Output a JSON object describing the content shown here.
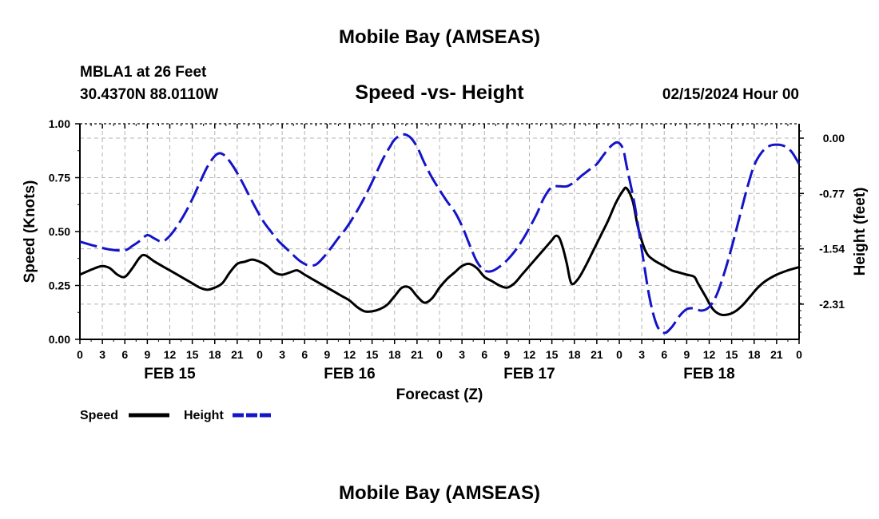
{
  "page": {
    "title_top": "Mobile Bay (AMSEAS)",
    "title_bottom": "Mobile Bay (AMSEAS)",
    "station": "MBLA1 at 26 Feet",
    "coords": "30.4370N  88.0110W",
    "datetime": "02/15/2024 Hour 00"
  },
  "colors": {
    "speed": "#000000",
    "height": "#1414c8",
    "grid": "#b4b4b4"
  },
  "chart_data": {
    "type": "line",
    "title": "Speed -vs- Height",
    "xlabel": "Forecast (Z)",
    "ylabel": "Speed (Knots)",
    "y2label": "Height (feet)",
    "x_unit": "hours from 02/15/2024 00Z",
    "xlim": [
      0,
      96
    ],
    "ylim": [
      0,
      1.0
    ],
    "y2lim": [
      -2.8,
      0.2
    ],
    "x_ticks": [
      0,
      3,
      6,
      9,
      12,
      15,
      18,
      21,
      24,
      27,
      30,
      33,
      36,
      39,
      42,
      45,
      48,
      51,
      54,
      57,
      60,
      63,
      66,
      69,
      72,
      75,
      78,
      81,
      84,
      87,
      90,
      93,
      96
    ],
    "x_tick_labels": [
      "0",
      "3",
      "6",
      "9",
      "12",
      "15",
      "18",
      "21",
      "0",
      "3",
      "6",
      "9",
      "12",
      "15",
      "18",
      "21",
      "0",
      "3",
      "6",
      "9",
      "12",
      "15",
      "18",
      "21",
      "0",
      "3",
      "6",
      "9",
      "12",
      "15",
      "18",
      "21",
      "0"
    ],
    "day_labels": [
      {
        "x": 12,
        "label": "FEB 15"
      },
      {
        "x": 36,
        "label": "FEB 16"
      },
      {
        "x": 60,
        "label": "FEB 17"
      },
      {
        "x": 84,
        "label": "FEB 18"
      }
    ],
    "y_ticks": [
      0.0,
      0.25,
      0.5,
      0.75,
      1.0
    ],
    "y_tick_labels": [
      "0.00",
      "0.25",
      "0.50",
      "0.75",
      "1.00"
    ],
    "y2_ticks": [
      0.0,
      -0.77,
      -1.54,
      -2.31
    ],
    "y2_tick_labels": [
      "0.00",
      "-0.77",
      "-1.54",
      "-2.31"
    ],
    "series": [
      {
        "name": "Speed",
        "axis": "left",
        "style": "solid",
        "points": [
          [
            0,
            0.3
          ],
          [
            2,
            0.33
          ],
          [
            3,
            0.34
          ],
          [
            4,
            0.33
          ],
          [
            5,
            0.3
          ],
          [
            6,
            0.29
          ],
          [
            7,
            0.33
          ],
          [
            8,
            0.38
          ],
          [
            8.7,
            0.39
          ],
          [
            10,
            0.36
          ],
          [
            12,
            0.32
          ],
          [
            14,
            0.28
          ],
          [
            15,
            0.26
          ],
          [
            16,
            0.24
          ],
          [
            17,
            0.23
          ],
          [
            18,
            0.24
          ],
          [
            19,
            0.26
          ],
          [
            20,
            0.31
          ],
          [
            21,
            0.35
          ],
          [
            22,
            0.36
          ],
          [
            23,
            0.37
          ],
          [
            24,
            0.36
          ],
          [
            25,
            0.34
          ],
          [
            26,
            0.31
          ],
          [
            27,
            0.3
          ],
          [
            28,
            0.31
          ],
          [
            29,
            0.32
          ],
          [
            30,
            0.3
          ],
          [
            31,
            0.28
          ],
          [
            32,
            0.26
          ],
          [
            33,
            0.24
          ],
          [
            34,
            0.22
          ],
          [
            35,
            0.2
          ],
          [
            36,
            0.18
          ],
          [
            37,
            0.15
          ],
          [
            38,
            0.13
          ],
          [
            39,
            0.13
          ],
          [
            40,
            0.14
          ],
          [
            41,
            0.16
          ],
          [
            42,
            0.2
          ],
          [
            43,
            0.24
          ],
          [
            44,
            0.24
          ],
          [
            45,
            0.2
          ],
          [
            46,
            0.17
          ],
          [
            47,
            0.19
          ],
          [
            48,
            0.24
          ],
          [
            49,
            0.28
          ],
          [
            50,
            0.31
          ],
          [
            51,
            0.34
          ],
          [
            52,
            0.35
          ],
          [
            53,
            0.33
          ],
          [
            54,
            0.29
          ],
          [
            55,
            0.27
          ],
          [
            56,
            0.25
          ],
          [
            57,
            0.24
          ],
          [
            58,
            0.26
          ],
          [
            59,
            0.3
          ],
          [
            60,
            0.34
          ],
          [
            61,
            0.38
          ],
          [
            62,
            0.42
          ],
          [
            63,
            0.46
          ],
          [
            63.5,
            0.48
          ],
          [
            64,
            0.47
          ],
          [
            64.5,
            0.42
          ],
          [
            65,
            0.35
          ],
          [
            65.6,
            0.26
          ],
          [
            66.5,
            0.28
          ],
          [
            67.5,
            0.34
          ],
          [
            68.5,
            0.41
          ],
          [
            69.5,
            0.48
          ],
          [
            70.5,
            0.55
          ],
          [
            71.5,
            0.63
          ],
          [
            72.5,
            0.69
          ],
          [
            73,
            0.7
          ],
          [
            73.8,
            0.64
          ],
          [
            74.5,
            0.52
          ],
          [
            75.5,
            0.41
          ],
          [
            76.5,
            0.37
          ],
          [
            78,
            0.34
          ],
          [
            79,
            0.32
          ],
          [
            80,
            0.31
          ],
          [
            81,
            0.3
          ],
          [
            82,
            0.29
          ],
          [
            82.5,
            0.26
          ],
          [
            83.5,
            0.2
          ],
          [
            84.5,
            0.14
          ],
          [
            85.5,
            0.115
          ],
          [
            86.5,
            0.115
          ],
          [
            87.5,
            0.13
          ],
          [
            88.5,
            0.16
          ],
          [
            89.5,
            0.2
          ],
          [
            90.5,
            0.24
          ],
          [
            91.5,
            0.27
          ],
          [
            93,
            0.3
          ],
          [
            94.5,
            0.32
          ],
          [
            96,
            0.335
          ]
        ]
      },
      {
        "name": "Height",
        "axis": "right",
        "style": "dashed",
        "points": [
          [
            0,
            -1.44
          ],
          [
            2,
            -1.5
          ],
          [
            4,
            -1.55
          ],
          [
            6,
            -1.56
          ],
          [
            7,
            -1.5
          ],
          [
            8,
            -1.43
          ],
          [
            9,
            -1.35
          ],
          [
            10,
            -1.4
          ],
          [
            11,
            -1.44
          ],
          [
            12,
            -1.36
          ],
          [
            13,
            -1.22
          ],
          [
            14,
            -1.05
          ],
          [
            15,
            -0.85
          ],
          [
            16,
            -0.62
          ],
          [
            17,
            -0.4
          ],
          [
            18,
            -0.25
          ],
          [
            18.7,
            -0.21
          ],
          [
            19.5,
            -0.26
          ],
          [
            20.5,
            -0.4
          ],
          [
            21.5,
            -0.58
          ],
          [
            22.5,
            -0.78
          ],
          [
            23.5,
            -0.98
          ],
          [
            24.5,
            -1.16
          ],
          [
            25.5,
            -1.3
          ],
          [
            26.5,
            -1.43
          ],
          [
            27.5,
            -1.53
          ],
          [
            28.5,
            -1.63
          ],
          [
            29.5,
            -1.72
          ],
          [
            30.5,
            -1.77
          ],
          [
            31.5,
            -1.76
          ],
          [
            32.5,
            -1.66
          ],
          [
            33.5,
            -1.53
          ],
          [
            34.5,
            -1.39
          ],
          [
            35.5,
            -1.26
          ],
          [
            36.5,
            -1.1
          ],
          [
            37.5,
            -0.92
          ],
          [
            38.5,
            -0.72
          ],
          [
            39.5,
            -0.5
          ],
          [
            40.5,
            -0.28
          ],
          [
            41.5,
            -0.1
          ],
          [
            42,
            -0.02
          ],
          [
            43,
            0.05
          ],
          [
            44,
            0.02
          ],
          [
            45,
            -0.12
          ],
          [
            46,
            -0.35
          ],
          [
            47,
            -0.55
          ],
          [
            48,
            -0.72
          ],
          [
            49,
            -0.88
          ],
          [
            50,
            -1.02
          ],
          [
            51,
            -1.22
          ],
          [
            52,
            -1.48
          ],
          [
            53,
            -1.72
          ],
          [
            54,
            -1.84
          ],
          [
            55,
            -1.85
          ],
          [
            56,
            -1.79
          ],
          [
            57,
            -1.7
          ],
          [
            58,
            -1.58
          ],
          [
            59,
            -1.43
          ],
          [
            60,
            -1.25
          ],
          [
            61,
            -1.05
          ],
          [
            62,
            -0.82
          ],
          [
            63,
            -0.68
          ],
          [
            64,
            -0.67
          ],
          [
            65,
            -0.67
          ],
          [
            66,
            -0.61
          ],
          [
            67,
            -0.52
          ],
          [
            68,
            -0.44
          ],
          [
            69,
            -0.36
          ],
          [
            70,
            -0.22
          ],
          [
            71,
            -0.1
          ],
          [
            71.8,
            -0.06
          ],
          [
            72.5,
            -0.15
          ],
          [
            73,
            -0.4
          ],
          [
            74,
            -0.9
          ],
          [
            75,
            -1.55
          ],
          [
            76,
            -2.2
          ],
          [
            77,
            -2.6
          ],
          [
            78,
            -2.71
          ],
          [
            79,
            -2.63
          ],
          [
            80,
            -2.48
          ],
          [
            81,
            -2.38
          ],
          [
            82,
            -2.37
          ],
          [
            83,
            -2.4
          ],
          [
            84,
            -2.35
          ],
          [
            85,
            -2.18
          ],
          [
            86,
            -1.88
          ],
          [
            87,
            -1.52
          ],
          [
            88,
            -1.12
          ],
          [
            89,
            -0.72
          ],
          [
            90,
            -0.38
          ],
          [
            91,
            -0.2
          ],
          [
            92,
            -0.11
          ],
          [
            93,
            -0.09
          ],
          [
            94,
            -0.11
          ],
          [
            95,
            -0.19
          ],
          [
            96,
            -0.36
          ]
        ]
      }
    ],
    "legend": {
      "position": "bottom-left",
      "entries": [
        {
          "label": "Speed",
          "style": "solid"
        },
        {
          "label": "Height",
          "style": "dashed"
        }
      ]
    }
  }
}
